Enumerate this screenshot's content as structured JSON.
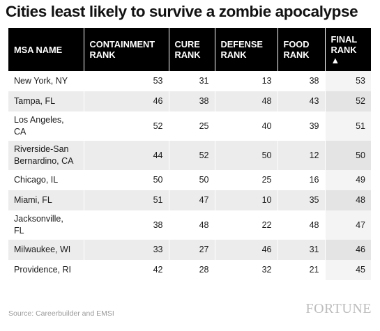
{
  "title": "Cities least likely to survive a zombie apocalypse",
  "chart_data": {
    "type": "table",
    "title": "Cities least likely to survive a zombie apocalypse",
    "columns": [
      {
        "line1": "MSA NAME",
        "line2": ""
      },
      {
        "line1": "CONTAINMENT",
        "line2": "RANK"
      },
      {
        "line1": "CURE",
        "line2": "RANK"
      },
      {
        "line1": "DEFENSE",
        "line2": "RANK"
      },
      {
        "line1": "FOOD",
        "line2": "RANK"
      },
      {
        "line1": "FINAL",
        "line2": "RANK",
        "line3": "▲"
      }
    ],
    "rows": [
      {
        "line1": "New York, NY",
        "line2": "",
        "values": [
          53,
          31,
          13,
          38,
          53
        ]
      },
      {
        "line1": "Tampa, FL",
        "line2": "",
        "values": [
          46,
          38,
          48,
          43,
          52
        ]
      },
      {
        "line1": "Los Angeles,",
        "line2": "CA",
        "values": [
          52,
          25,
          40,
          39,
          51
        ]
      },
      {
        "line1": "Riverside-San",
        "line2": "Bernardino, CA",
        "values": [
          44,
          52,
          50,
          12,
          50
        ]
      },
      {
        "line1": "Chicago, IL",
        "line2": "",
        "values": [
          50,
          50,
          25,
          16,
          49
        ]
      },
      {
        "line1": "Miami, FL",
        "line2": "",
        "values": [
          51,
          47,
          10,
          35,
          48
        ]
      },
      {
        "line1": "Jacksonville,",
        "line2": "FL",
        "values": [
          38,
          48,
          22,
          48,
          47
        ]
      },
      {
        "line1": "Milwaukee, WI",
        "line2": "",
        "values": [
          33,
          27,
          46,
          31,
          46
        ]
      },
      {
        "line1": "Providence, RI",
        "line2": "",
        "values": [
          42,
          28,
          32,
          21,
          45
        ]
      }
    ],
    "sort": "final-rank"
  },
  "source": "Source: Careerbuilder and EMSI",
  "brand": "FORTUNE",
  "colors": {
    "header_bg": "#000000",
    "header_text": "#ffffff",
    "stripe": "#ececec",
    "source_text": "#9a9a9a",
    "brand_text": "#bdbdbd"
  }
}
